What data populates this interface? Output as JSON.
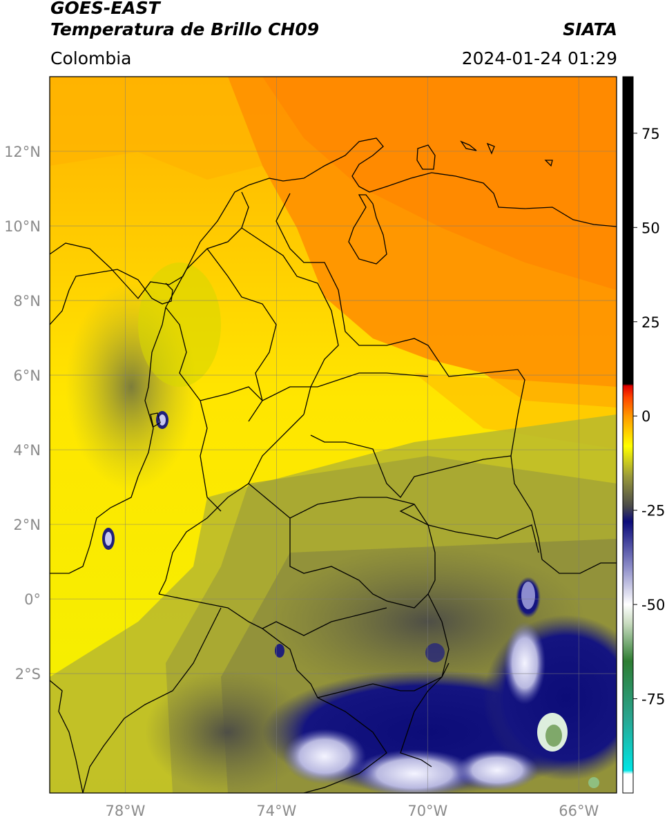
{
  "header": {
    "satellite": "GOES-EAST",
    "product": "Temperatura de Brillo CH09",
    "region": "Colombia",
    "brand": "SIATA",
    "timestamp": "2024-01-24 01:29"
  },
  "map": {
    "lon_range": [
      -80,
      -65
    ],
    "lat_range": [
      -5.2,
      14
    ],
    "lon_ticks": [
      {
        "value": -78,
        "label": "78°W"
      },
      {
        "value": -74,
        "label": "74°W"
      },
      {
        "value": -70,
        "label": "70°W"
      },
      {
        "value": -66,
        "label": "66°W"
      }
    ],
    "lat_ticks": [
      {
        "value": 12,
        "label": "12°N"
      },
      {
        "value": 10,
        "label": "10°N"
      },
      {
        "value": 8,
        "label": "8°N"
      },
      {
        "value": 6,
        "label": "6°N"
      },
      {
        "value": 4,
        "label": "4°N"
      },
      {
        "value": 2,
        "label": "2°N"
      },
      {
        "value": 0,
        "label": "0°"
      },
      {
        "value": -2,
        "label": "2°S"
      }
    ],
    "grid": true
  },
  "colorbar": {
    "range": [
      -100,
      90
    ],
    "ticks": [
      {
        "value": 75,
        "label": "75"
      },
      {
        "value": 50,
        "label": "50"
      },
      {
        "value": 25,
        "label": "25"
      },
      {
        "value": 0,
        "label": "0"
      },
      {
        "value": -25,
        "label": "-25"
      },
      {
        "value": -50,
        "label": "-50"
      },
      {
        "value": -75,
        "label": "-75"
      }
    ],
    "stops": [
      {
        "value": -100,
        "color": "#ffffff"
      },
      {
        "value": -95,
        "color": "#ffffff"
      },
      {
        "value": -94,
        "color": "#00e5e5"
      },
      {
        "value": -80,
        "color": "#2aa58f"
      },
      {
        "value": -65,
        "color": "#2e7d32"
      },
      {
        "value": -55,
        "color": "#c9dcc0"
      },
      {
        "value": -50,
        "color": "#ffffff"
      },
      {
        "value": -40,
        "color": "#8c8cc8"
      },
      {
        "value": -28,
        "color": "#0b0b7a"
      },
      {
        "value": -24,
        "color": "#4a4a4a"
      },
      {
        "value": -16,
        "color": "#9a9a3a"
      },
      {
        "value": -8,
        "color": "#ffff00"
      },
      {
        "value": 0,
        "color": "#ff9900"
      },
      {
        "value": 5,
        "color": "#ff4400"
      },
      {
        "value": 8,
        "color": "#e00000"
      },
      {
        "value": 8.5,
        "color": "#000000"
      },
      {
        "value": 90,
        "color": "#000000"
      }
    ]
  }
}
